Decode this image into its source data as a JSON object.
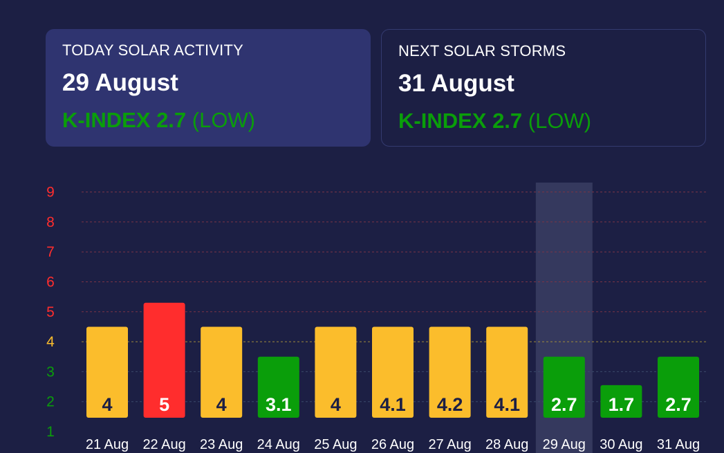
{
  "today": {
    "label": "TODAY SOLAR ACTIVITY",
    "date": "29 August",
    "kindex": "K-INDEX 2.7",
    "level": "(LOW)"
  },
  "next": {
    "label": "NEXT SOLAR STORMS",
    "date": "31 August",
    "kindex": "K-INDEX 2.7",
    "level": "(LOW)"
  },
  "colors": {
    "background": "#1c1f44",
    "low": "#0a9e0a",
    "moderate": "#fbbd2c",
    "high": "#ff2d2d"
  },
  "chart_data": {
    "type": "bar",
    "categories": [
      "21 Aug",
      "22 Aug",
      "23 Aug",
      "24 Aug",
      "25 Aug",
      "26 Aug",
      "27 Aug",
      "28 Aug",
      "29 Aug",
      "30 Aug",
      "31 Aug"
    ],
    "values": [
      4,
      5,
      4,
      3.1,
      4,
      4.1,
      4.2,
      4.1,
      2.7,
      1.7,
      2.7
    ],
    "value_labels": [
      "4",
      "5",
      "4",
      "3.1",
      "4",
      "4.1",
      "4.2",
      "4.1",
      "2.7",
      "1.7",
      "2.7"
    ],
    "bar_levels": [
      "moderate",
      "high",
      "moderate",
      "low",
      "moderate",
      "moderate",
      "moderate",
      "moderate",
      "low",
      "low",
      "low"
    ],
    "highlighted_category": "29 Aug",
    "y_ticks": [
      "1",
      "2",
      "3",
      "4",
      "5",
      "6",
      "7",
      "8",
      "9"
    ],
    "ylim": [
      1,
      9
    ],
    "grid": true,
    "title": "",
    "xlabel": "",
    "ylabel": ""
  }
}
